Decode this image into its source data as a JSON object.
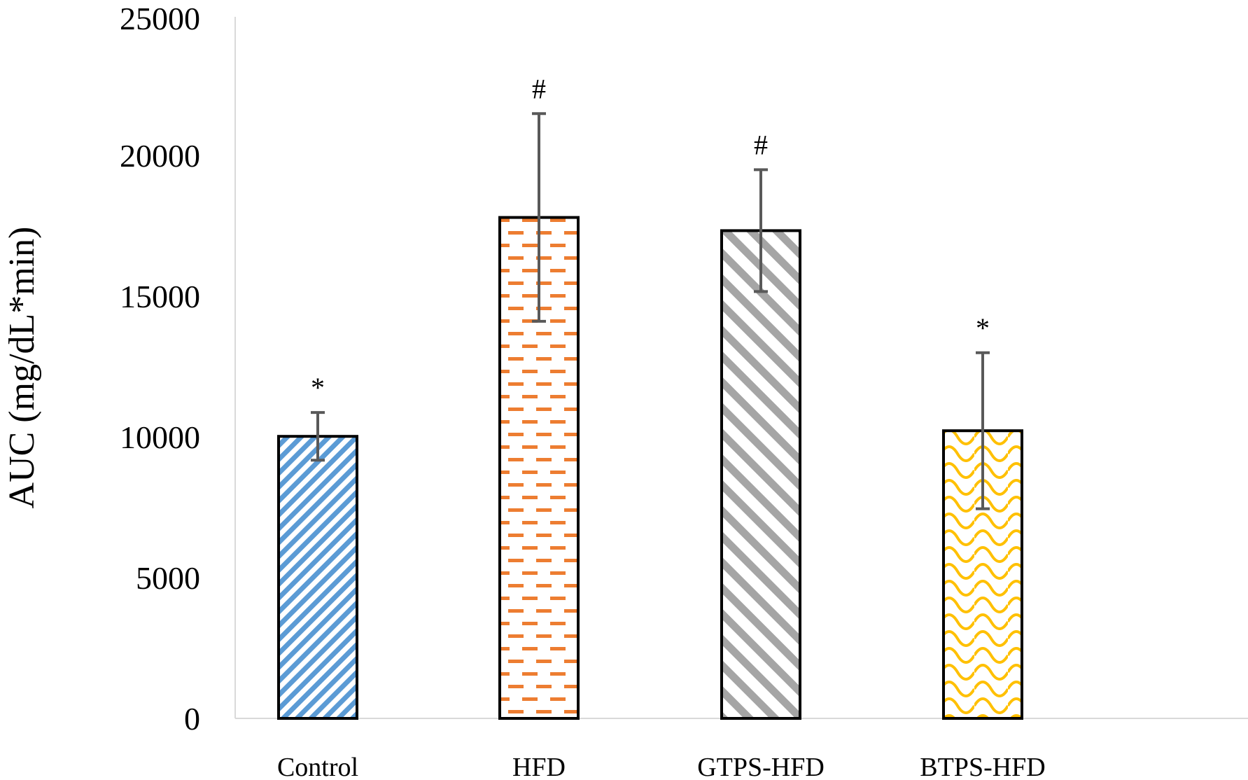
{
  "chart_data": {
    "type": "bar",
    "title": "",
    "xlabel": "",
    "ylabel": "AUC (mg/dL*min)",
    "ylim": [
      0,
      25000
    ],
    "yticks": [
      0,
      5000,
      10000,
      15000,
      20000,
      25000
    ],
    "ytick_labels": [
      "0",
      "5000",
      "10000",
      "15000",
      "20000",
      "25000"
    ],
    "grid": false,
    "categories": [
      "Control",
      "HFD",
      "GTPS-HFD",
      "BTPS-HFD"
    ],
    "values": [
      10050,
      17850,
      17380,
      10250
    ],
    "error_bars": [
      850,
      3700,
      2170,
      2780
    ],
    "annotations": [
      "*",
      "#",
      "#",
      "*"
    ],
    "bar_patterns": [
      "diagonal-stripes",
      "horizontal-dashes",
      "wide-diagonal-stripes",
      "scallop-lattice"
    ],
    "colors": [
      "#5B9BD5",
      "#ED7D31",
      "#A5A5A5",
      "#FFC000"
    ],
    "error_bar_color": "#595959",
    "axis_color": "#D9D9D9",
    "bar_outline_color": "#000000"
  }
}
